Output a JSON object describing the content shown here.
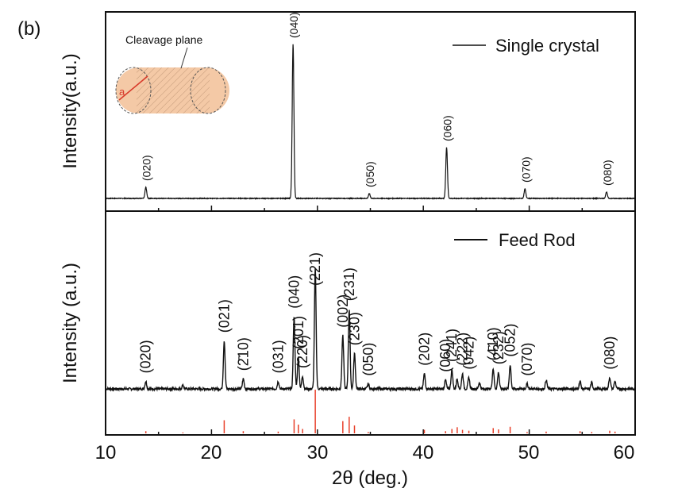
{
  "panel_label": "(b)",
  "chart_data": [
    {
      "type": "line",
      "panel": "top",
      "xlabel": "",
      "ylabel": "Intensity(a.u.)",
      "xlim": [
        10,
        60
      ],
      "ylim": [
        0,
        100
      ],
      "legend": {
        "label": "Single crystal",
        "position": "top-right"
      },
      "inset": {
        "label": "Cleavage plane",
        "axis_label": "a"
      },
      "peaks": [
        {
          "x": 13.8,
          "y": 7,
          "label": "(020)"
        },
        {
          "x": 27.7,
          "y": 97,
          "label": "(040)"
        },
        {
          "x": 34.9,
          "y": 3,
          "label": "(050)"
        },
        {
          "x": 42.2,
          "y": 32,
          "label": "(060)"
        },
        {
          "x": 49.6,
          "y": 6,
          "label": "(070)"
        },
        {
          "x": 57.3,
          "y": 4,
          "label": "(080)"
        }
      ]
    },
    {
      "type": "line",
      "panel": "bottom",
      "xlabel": "2θ (deg.)",
      "ylabel": "Intensity (a.u.)",
      "xlim": [
        10,
        60
      ],
      "ylim": [
        0,
        100
      ],
      "xticks": [
        "10",
        "20",
        "30",
        "40",
        "50",
        "60"
      ],
      "legend": {
        "label": "Feed Rod",
        "position": "top-right"
      },
      "peaks": [
        {
          "x": 13.8,
          "y": 6,
          "label": "(020)"
        },
        {
          "x": 17.3,
          "y": 3,
          "label": ""
        },
        {
          "x": 21.2,
          "y": 38,
          "label": "(021)"
        },
        {
          "x": 23.0,
          "y": 8,
          "label": "(2̄10)"
        },
        {
          "x": 26.3,
          "y": 6,
          "label": "(031)"
        },
        {
          "x": 27.8,
          "y": 57,
          "label": "(040)"
        },
        {
          "x": 28.2,
          "y": 25,
          "label": "(201)"
        },
        {
          "x": 28.6,
          "y": 10,
          "label": "(220)"
        },
        {
          "x": 29.8,
          "y": 95,
          "label": "(221)"
        },
        {
          "x": 32.4,
          "y": 42,
          "label": "(002)"
        },
        {
          "x": 33.0,
          "y": 63,
          "label": "(231)"
        },
        {
          "x": 33.5,
          "y": 28,
          "label": "(230)"
        },
        {
          "x": 34.8,
          "y": 4,
          "label": "(050)"
        },
        {
          "x": 40.1,
          "y": 12,
          "label": "(202)"
        },
        {
          "x": 42.1,
          "y": 7,
          "label": "(060)"
        },
        {
          "x": 42.7,
          "y": 15,
          "label": "(241)"
        },
        {
          "x": 43.2,
          "y": 8,
          "label": ""
        },
        {
          "x": 43.7,
          "y": 12,
          "label": "(222)"
        },
        {
          "x": 44.3,
          "y": 9,
          "label": "(042)"
        },
        {
          "x": 45.3,
          "y": 5,
          "label": ""
        },
        {
          "x": 46.6,
          "y": 16,
          "label": "(4̄10)"
        },
        {
          "x": 47.1,
          "y": 13,
          "label": "(232)"
        },
        {
          "x": 48.2,
          "y": 19,
          "label": "(052)"
        },
        {
          "x": 49.8,
          "y": 4,
          "label": "(070)"
        },
        {
          "x": 51.6,
          "y": 7,
          "label": ""
        },
        {
          "x": 54.8,
          "y": 6,
          "label": ""
        },
        {
          "x": 55.9,
          "y": 5,
          "label": ""
        },
        {
          "x": 57.6,
          "y": 9,
          "label": "(080)"
        },
        {
          "x": 58.1,
          "y": 6,
          "label": ""
        }
      ],
      "reference_lines": [
        {
          "x": 13.8,
          "y": 5
        },
        {
          "x": 17.3,
          "y": 2
        },
        {
          "x": 21.2,
          "y": 30
        },
        {
          "x": 23.0,
          "y": 5
        },
        {
          "x": 26.3,
          "y": 4
        },
        {
          "x": 27.8,
          "y": 32
        },
        {
          "x": 28.2,
          "y": 20
        },
        {
          "x": 28.6,
          "y": 10
        },
        {
          "x": 29.8,
          "y": 100
        },
        {
          "x": 32.4,
          "y": 28
        },
        {
          "x": 33.0,
          "y": 38
        },
        {
          "x": 33.5,
          "y": 18
        },
        {
          "x": 34.8,
          "y": 3
        },
        {
          "x": 40.1,
          "y": 8
        },
        {
          "x": 42.1,
          "y": 5
        },
        {
          "x": 42.7,
          "y": 10
        },
        {
          "x": 43.2,
          "y": 14
        },
        {
          "x": 43.7,
          "y": 8
        },
        {
          "x": 44.3,
          "y": 6
        },
        {
          "x": 46.6,
          "y": 12
        },
        {
          "x": 47.1,
          "y": 9
        },
        {
          "x": 48.2,
          "y": 15
        },
        {
          "x": 49.8,
          "y": 3
        },
        {
          "x": 51.6,
          "y": 4
        },
        {
          "x": 54.8,
          "y": 5
        },
        {
          "x": 55.9,
          "y": 3
        },
        {
          "x": 57.6,
          "y": 6
        },
        {
          "x": 58.1,
          "y": 4
        }
      ]
    }
  ],
  "colors": {
    "trace": "#111111",
    "reference": "#e8402a",
    "inset_fill": "#f4c9a6"
  }
}
